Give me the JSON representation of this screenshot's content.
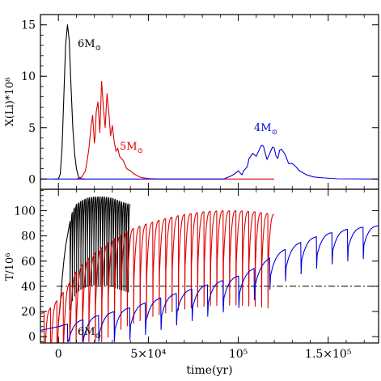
{
  "chart_data": [
    {
      "type": "line",
      "panel": "top",
      "ylabel": "X(Li)*10⁸",
      "ylim": [
        -1,
        16
      ],
      "xlim": [
        -10000,
        178000
      ],
      "yticks": [
        0,
        5,
        10,
        15
      ],
      "ytick_labels": [
        "0",
        "5",
        "10",
        "15"
      ],
      "series": [
        {
          "name": "6M☉",
          "color": "#000000",
          "x": [
            -2000,
            0,
            1000,
            2000,
            3000,
            4000,
            5000,
            6000,
            7000,
            8000,
            9000,
            10000,
            11000,
            12000,
            14000,
            15000
          ],
          "y": [
            0,
            0,
            0.5,
            3,
            8,
            13,
            15,
            13.5,
            9,
            5,
            2.5,
            1,
            0.3,
            0.05,
            0,
            0
          ]
        },
        {
          "name": "5M☉",
          "color": "#e00000",
          "x": [
            10000,
            13000,
            15000,
            16000,
            17000,
            18000,
            19000,
            20000,
            20500,
            21000,
            22000,
            23000,
            24000,
            25000,
            26000,
            27000,
            28000,
            29000,
            30000,
            31000,
            32000,
            33000,
            34000,
            36000,
            38000,
            40000,
            42000,
            44000,
            46000,
            50000,
            55000,
            60000,
            80000,
            100000,
            120000
          ],
          "y": [
            0,
            0.2,
            0.8,
            1.8,
            3,
            5,
            6.2,
            3.5,
            4.3,
            6.5,
            7.5,
            4.5,
            9.5,
            7,
            5,
            8.3,
            6.5,
            4.2,
            5.2,
            3.6,
            2.7,
            3,
            2.2,
            1.8,
            1,
            0.8,
            0.5,
            0.3,
            0.15,
            0.05,
            0,
            0,
            0,
            0,
            0
          ]
        },
        {
          "name": "4M☉",
          "color": "#0000e0",
          "x": [
            -10000,
            60000,
            80000,
            92000,
            96000,
            98000,
            100000,
            102000,
            103000,
            105000,
            106000,
            108000,
            110000,
            112000,
            113000,
            114000,
            115000,
            116000,
            118000,
            119000,
            120000,
            121000,
            122000,
            123000,
            124000,
            126000,
            128000,
            130000,
            132000,
            134000,
            138000,
            142000,
            148000,
            155000,
            178000
          ],
          "y": [
            0,
            0,
            0,
            0,
            0.3,
            0.5,
            0.8,
            0.4,
            0.8,
            1.2,
            2,
            2.5,
            2.2,
            3,
            3.3,
            3.2,
            2.5,
            1.9,
            2.7,
            3.1,
            3,
            2.2,
            2,
            2.8,
            2.9,
            2.4,
            1.5,
            1.5,
            1.2,
            0.8,
            0.4,
            0.2,
            0.1,
            0.02,
            0
          ]
        }
      ]
    },
    {
      "type": "line",
      "panel": "bottom",
      "ylabel": "T/10⁶",
      "xlabel": "time(yr)",
      "ylim": [
        -5,
        117
      ],
      "xlim": [
        -10000,
        178000
      ],
      "yticks": [
        0,
        20,
        40,
        60,
        80,
        100
      ],
      "ytick_labels": [
        "0",
        "20",
        "40",
        "60",
        "80",
        "100"
      ],
      "xticks": [
        0,
        50000,
        100000,
        150000
      ],
      "xtick_labels": [
        "0",
        "5×10⁴",
        "10⁵",
        "1.5×10⁵"
      ],
      "reference_line": {
        "y": 40,
        "style": "dash-dot"
      },
      "series": [
        {
          "name": "6M☉",
          "color": "#000000",
          "x": [
            0,
            1000,
            2000,
            3000,
            4000,
            5000,
            6000,
            7000,
            8000,
            10000,
            13000,
            16000,
            20000,
            25000,
            30000,
            35000,
            40000
          ],
          "y": [
            12,
            25,
            45,
            60,
            72,
            80,
            88,
            95,
            100,
            105,
            108,
            110,
            111,
            111,
            110,
            107,
            105
          ],
          "pulses": {
            "start": 6500,
            "end": 40000,
            "count": 28,
            "depth": 70
          }
        },
        {
          "name": "5M☉",
          "color": "#e00000",
          "x": [
            -10000,
            -5000,
            0,
            5000,
            10000,
            15000,
            20000,
            25000,
            30000,
            35000,
            40000,
            50000,
            60000,
            70000,
            80000,
            90000,
            100000,
            110000,
            120000
          ],
          "y": [
            18,
            22,
            30,
            40,
            52,
            60,
            66,
            72,
            77,
            81,
            85,
            90,
            94,
            97,
            99,
            100,
            100,
            99,
            97
          ],
          "pulses": {
            "start": -8000,
            "end": 120000,
            "count": 36,
            "depth": 75
          }
        },
        {
          "name": "4M☉",
          "color": "#0000e0",
          "x": [
            -10000,
            0,
            20000,
            40000,
            60000,
            80000,
            100000,
            110000,
            120000,
            130000,
            140000,
            150000,
            160000,
            170000,
            178000
          ],
          "y": [
            5,
            8,
            16,
            23,
            32,
            40,
            48,
            55,
            65,
            72,
            78,
            82,
            85,
            87,
            88
          ],
          "pulses": {
            "start": 5000,
            "end": 178000,
            "count": 20,
            "depth": 25
          }
        }
      ]
    }
  ],
  "annotations": {
    "top_6": {
      "text": "6M",
      "sub": "⊙",
      "color": "#000000"
    },
    "top_5": {
      "text": "5M",
      "sub": "⊙",
      "color": "#e00000"
    },
    "top_4": {
      "text": "4M",
      "sub": "⊙",
      "color": "#0000e0"
    },
    "bottom_6": {
      "text": "6M",
      "sub": "⊙",
      "color": "#000000"
    }
  }
}
